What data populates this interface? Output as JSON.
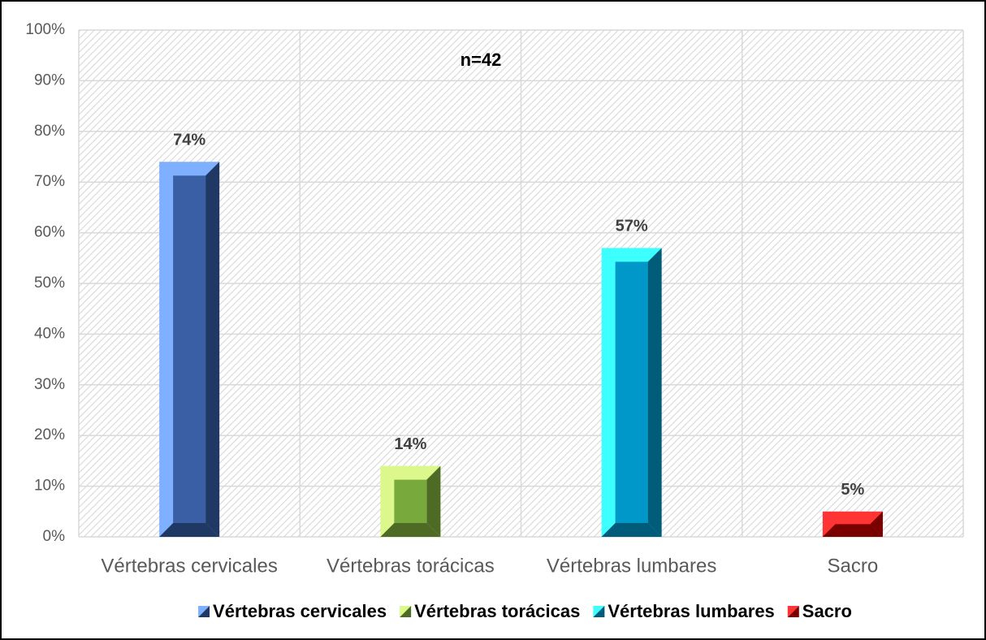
{
  "chart_data": {
    "type": "bar",
    "annotation": "n=42",
    "categories": [
      "Vértebras cervicales",
      "Vértebras torácicas",
      "Vértebras lumbares",
      "Sacro"
    ],
    "values": [
      74,
      14,
      57,
      5
    ],
    "value_labels": [
      "74%",
      "14%",
      "57%",
      "5%"
    ],
    "colors": [
      [
        "#7fb0ff",
        "#3a5fa5",
        "#1f3864"
      ],
      [
        "#dcf78c",
        "#77a93d",
        "#4d6b25"
      ],
      [
        "#3dffff",
        "#0097c9",
        "#005c78"
      ],
      [
        "#ff3535",
        "#c00000",
        "#7a0000"
      ]
    ],
    "ylim": [
      0,
      100
    ],
    "yticks": [
      {
        "value": 0,
        "label": "0%"
      },
      {
        "value": 10,
        "label": "10%"
      },
      {
        "value": 20,
        "label": "20%"
      },
      {
        "value": 30,
        "label": "30%"
      },
      {
        "value": 40,
        "label": "40%"
      },
      {
        "value": 50,
        "label": "50%"
      },
      {
        "value": 60,
        "label": "60%"
      },
      {
        "value": 70,
        "label": "70%"
      },
      {
        "value": 80,
        "label": "80%"
      },
      {
        "value": 90,
        "label": "90%"
      },
      {
        "value": 100,
        "label": "100%"
      }
    ],
    "grid": true
  }
}
